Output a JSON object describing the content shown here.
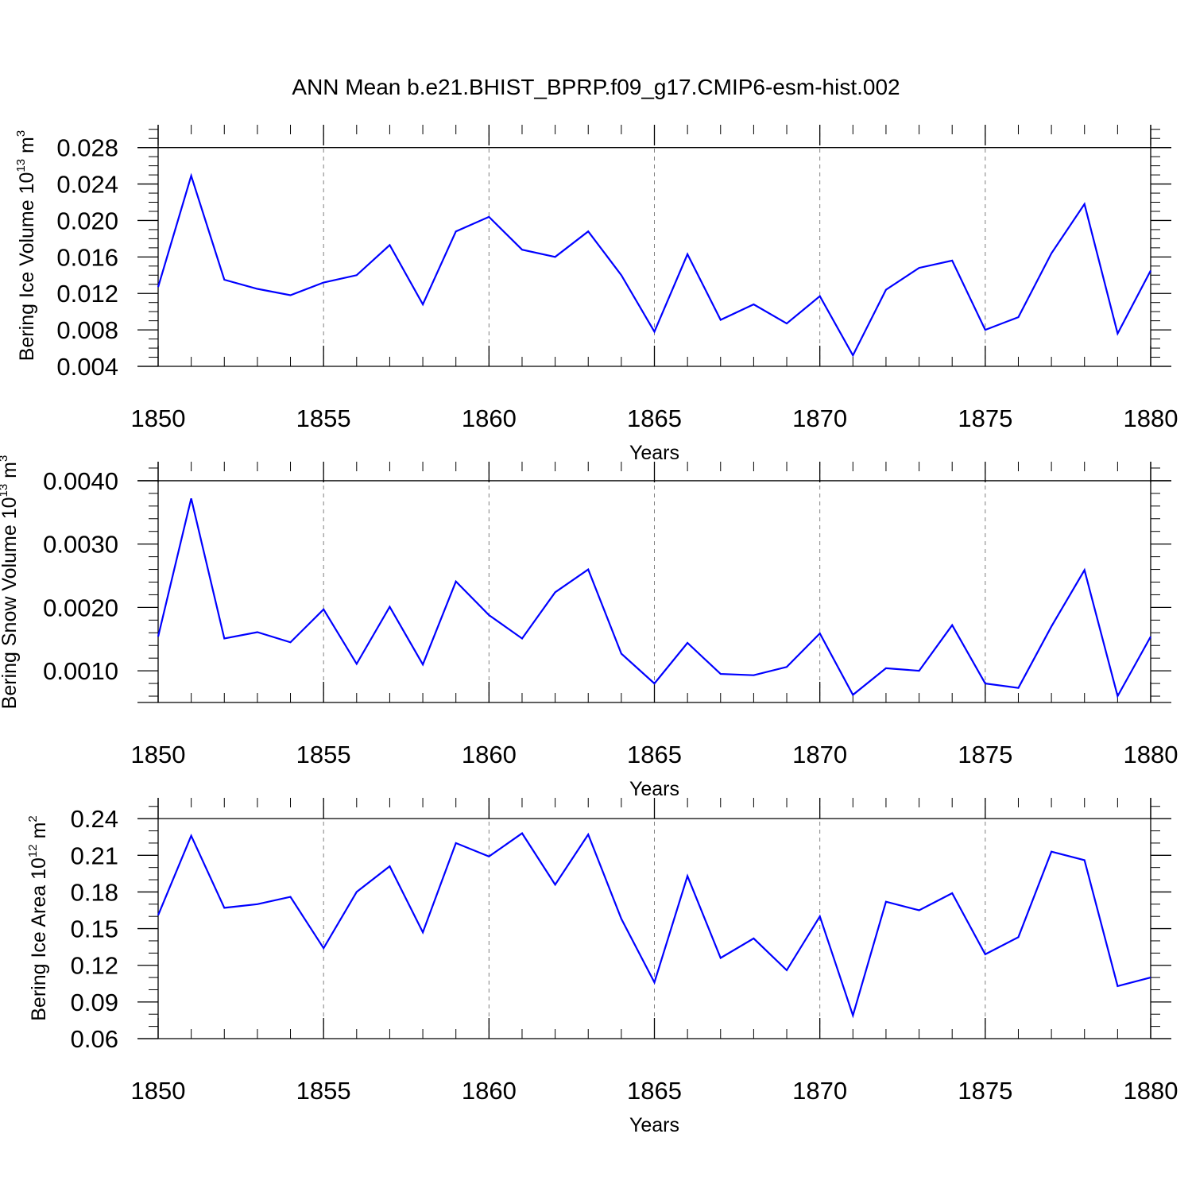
{
  "figure_title": "ANN Mean b.e21.BHIST_BPRP.f09_g17.CMIP6-esm-hist.002",
  "colors": {
    "line": "#0000ff",
    "axis": "#000000",
    "grid": "#808080"
  },
  "chart_data": [
    {
      "type": "line",
      "xlabel": "Years",
      "ylabel": {
        "text": "Bering Ice Volume 10",
        "exp": "13",
        "unit": " m",
        "unit_exp": "3"
      },
      "xlim": [
        1850,
        1880
      ],
      "ylim": [
        0.004,
        0.0305
      ],
      "xticks": [
        1850,
        1855,
        1860,
        1865,
        1870,
        1875,
        1880
      ],
      "yticks": [
        0.004,
        0.008,
        0.012,
        0.016,
        0.02,
        0.024,
        0.028
      ],
      "ytick_labels": [
        "0.004",
        "0.008",
        "0.012",
        "0.016",
        "0.020",
        "0.024",
        "0.028"
      ],
      "yminor": 0.001,
      "ymajor_line": 0.028,
      "x": [
        1850,
        1851,
        1852,
        1853,
        1854,
        1855,
        1856,
        1857,
        1858,
        1859,
        1860,
        1861,
        1862,
        1863,
        1864,
        1865,
        1866,
        1867,
        1868,
        1869,
        1870,
        1871,
        1872,
        1873,
        1874,
        1875,
        1876,
        1877,
        1878,
        1879,
        1880
      ],
      "values": [
        0.0127,
        0.0249,
        0.0135,
        0.0125,
        0.0118,
        0.0132,
        0.014,
        0.0173,
        0.0108,
        0.0188,
        0.0204,
        0.0168,
        0.016,
        0.0188,
        0.014,
        0.0078,
        0.0163,
        0.0091,
        0.0108,
        0.0087,
        0.0117,
        0.0052,
        0.0124,
        0.0148,
        0.0156,
        0.008,
        0.0094,
        0.0164,
        0.0218,
        0.0076,
        0.0145
      ]
    },
    {
      "type": "line",
      "xlabel": "Years",
      "ylabel": {
        "text": "Bering Snow Volume 10",
        "exp": "13",
        "unit": " m",
        "unit_exp": "3"
      },
      "xlim": [
        1850,
        1880
      ],
      "ylim": [
        0.0005,
        0.0043
      ],
      "xticks": [
        1850,
        1855,
        1860,
        1865,
        1870,
        1875,
        1880
      ],
      "yticks": [
        0.001,
        0.002,
        0.003,
        0.004
      ],
      "ytick_labels": [
        "0.0010",
        "0.0020",
        "0.0030",
        "0.0040"
      ],
      "yminor": 0.0002,
      "ymajor_line": 0.004,
      "x": [
        1850,
        1851,
        1852,
        1853,
        1854,
        1855,
        1856,
        1857,
        1858,
        1859,
        1860,
        1861,
        1862,
        1863,
        1864,
        1865,
        1866,
        1867,
        1868,
        1869,
        1870,
        1871,
        1872,
        1873,
        1874,
        1875,
        1876,
        1877,
        1878,
        1879,
        1880
      ],
      "values": [
        0.00154,
        0.00372,
        0.00151,
        0.00161,
        0.00145,
        0.00197,
        0.00111,
        0.00201,
        0.0011,
        0.00241,
        0.00188,
        0.00151,
        0.00224,
        0.0026,
        0.00127,
        0.0008,
        0.00144,
        0.00095,
        0.00093,
        0.00106,
        0.00159,
        0.00062,
        0.00104,
        0.001,
        0.00172,
        0.0008,
        0.00073,
        0.0017,
        0.00259,
        0.0006,
        0.00154
      ]
    },
    {
      "type": "line",
      "xlabel": "Years",
      "ylabel": {
        "text": "Bering Ice Area 10",
        "exp": "12",
        "unit": " m",
        "unit_exp": "2"
      },
      "xlim": [
        1850,
        1880
      ],
      "ylim": [
        0.06,
        0.257
      ],
      "xticks": [
        1850,
        1855,
        1860,
        1865,
        1870,
        1875,
        1880
      ],
      "yticks": [
        0.06,
        0.09,
        0.12,
        0.15,
        0.18,
        0.21,
        0.24
      ],
      "ytick_labels": [
        "0.06",
        "0.09",
        "0.12",
        "0.15",
        "0.18",
        "0.21",
        "0.24"
      ],
      "yminor": 0.01,
      "ymajor_line": 0.24,
      "x": [
        1850,
        1851,
        1852,
        1853,
        1854,
        1855,
        1856,
        1857,
        1858,
        1859,
        1860,
        1861,
        1862,
        1863,
        1864,
        1865,
        1866,
        1867,
        1868,
        1869,
        1870,
        1871,
        1872,
        1873,
        1874,
        1875,
        1876,
        1877,
        1878,
        1879,
        1880
      ],
      "values": [
        0.161,
        0.226,
        0.167,
        0.17,
        0.176,
        0.134,
        0.18,
        0.201,
        0.147,
        0.22,
        0.209,
        0.228,
        0.186,
        0.227,
        0.158,
        0.106,
        0.193,
        0.126,
        0.142,
        0.116,
        0.16,
        0.079,
        0.172,
        0.165,
        0.179,
        0.129,
        0.143,
        0.213,
        0.206,
        0.103,
        0.11
      ]
    }
  ]
}
